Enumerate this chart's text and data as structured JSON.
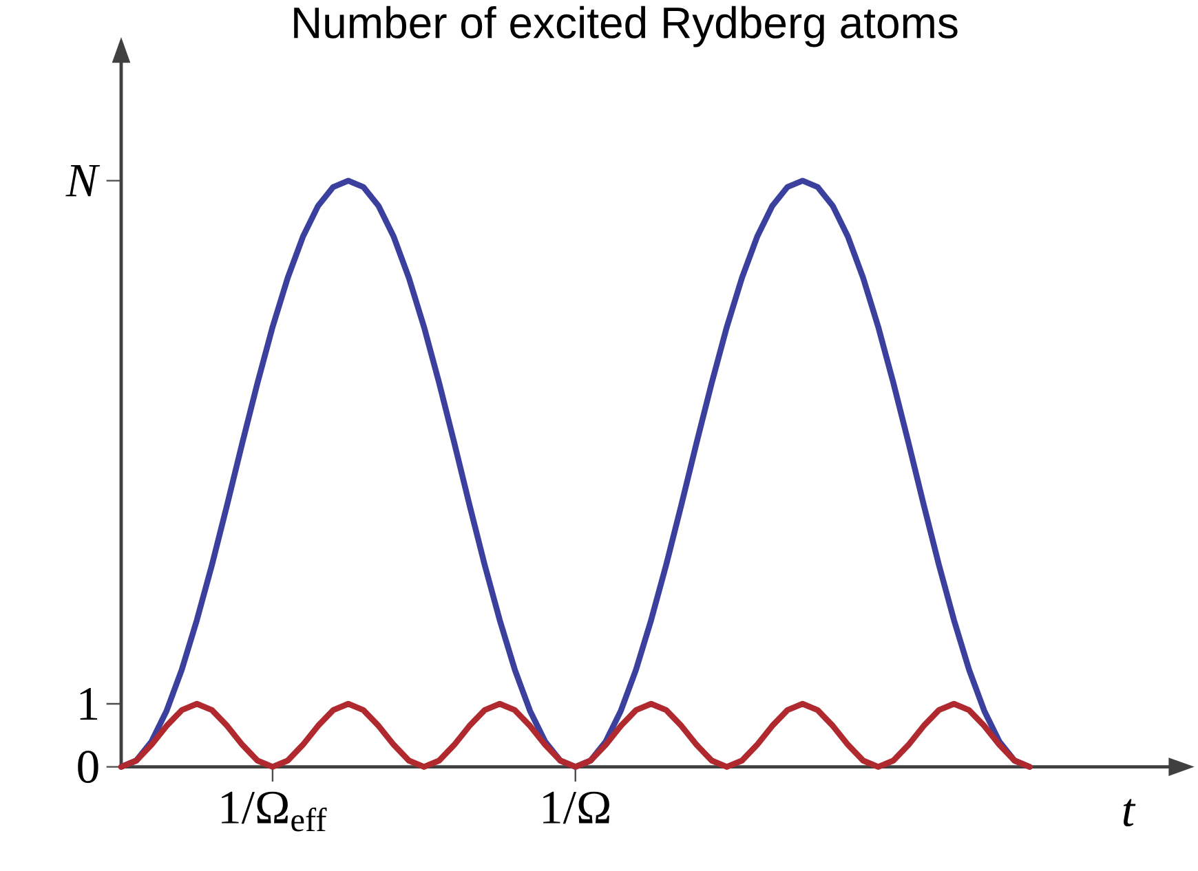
{
  "chart_data": {
    "type": "line",
    "title": "Number of excited Rydberg atoms",
    "xlabel": "*t*",
    "categories": [
      null,
      null,
      null,
      null,
      null,
      null,
      null,
      null,
      null,
      null,
      "1/Ω$_{eff}$",
      null,
      null,
      null,
      null,
      null,
      null,
      null,
      null,
      null,
      null,
      null,
      null,
      null,
      null,
      null,
      null,
      null,
      null,
      null,
      "1/Ω",
      null,
      null,
      null,
      null,
      null,
      null,
      null,
      null,
      null,
      null,
      null,
      null,
      null,
      null,
      null,
      null,
      null,
      null,
      null,
      null,
      null,
      null,
      null,
      null,
      null,
      null,
      null,
      null,
      null,
      null
    ],
    "ylim": [
      0,
      11.2
    ],
    "yticks": [
      0,
      1,
      {
        "value": 9.3,
        "label": "*N*"
      }
    ],
    "series": [
      {
        "color": "#3b3f9e",
        "values": [
          0,
          0.1,
          0.4,
          0.89,
          1.54,
          2.33,
          3.21,
          4.16,
          5.14,
          6.09,
          6.98,
          7.76,
          8.41,
          8.9,
          9.2,
          9.3,
          9.2,
          8.9,
          8.41,
          7.76,
          6.98,
          6.09,
          5.14,
          4.16,
          3.21,
          2.33,
          1.54,
          0.89,
          0.4,
          0.1,
          0,
          0.1,
          0.4,
          0.89,
          1.54,
          2.33,
          3.21,
          4.16,
          5.14,
          6.09,
          6.98,
          7.76,
          8.41,
          8.9,
          9.2,
          9.3,
          9.2,
          8.9,
          8.41,
          7.76,
          6.98,
          6.09,
          5.14,
          4.16,
          3.21,
          2.33,
          1.54,
          0.89,
          0.4,
          0.1,
          0
        ]
      },
      {
        "color": "#b0292e",
        "values": [
          0,
          0.1,
          0.35,
          0.65,
          0.9,
          1,
          0.9,
          0.65,
          0.35,
          0.1,
          0,
          0.1,
          0.35,
          0.65,
          0.9,
          1,
          0.9,
          0.65,
          0.35,
          0.1,
          0,
          0.1,
          0.35,
          0.65,
          0.9,
          1,
          0.9,
          0.65,
          0.35,
          0.1,
          0,
          0.1,
          0.35,
          0.65,
          0.9,
          1,
          0.9,
          0.65,
          0.35,
          0.1,
          0,
          0.1,
          0.35,
          0.65,
          0.9,
          1,
          0.9,
          0.65,
          0.35,
          0.1,
          0,
          0.1,
          0.35,
          0.65,
          0.9,
          1,
          0.9,
          0.65,
          0.35,
          0.1,
          0
        ]
      }
    ]
  }
}
